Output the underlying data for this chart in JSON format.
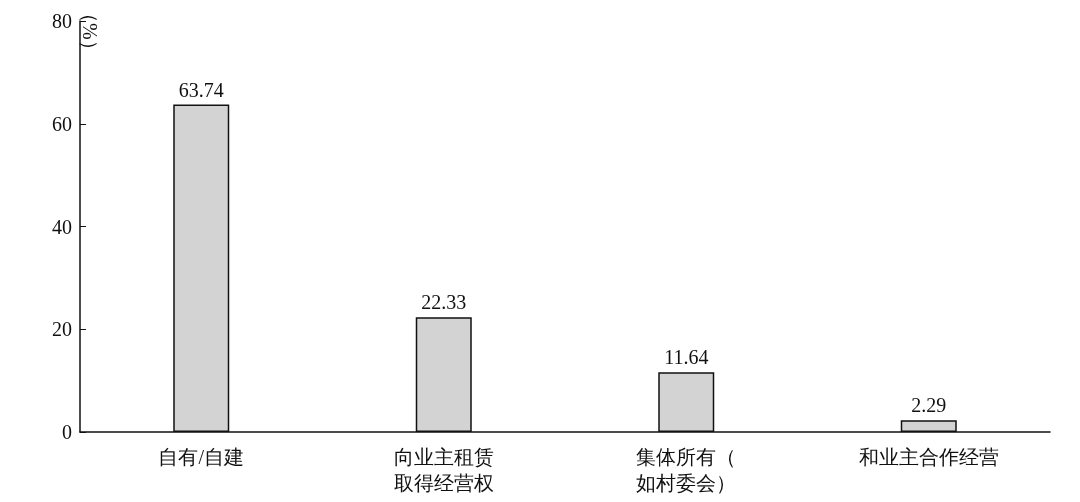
{
  "chart_data": {
    "type": "bar",
    "ylabel": "（%）",
    "categories": [
      "自有/自建",
      "向业主租赁取得经营权",
      "集体所有（如村委会）",
      "和业主合作经营"
    ],
    "values": [
      63.74,
      22.33,
      11.64,
      2.29
    ],
    "color": "#d3d3d3",
    "ylim": [
      0,
      80
    ],
    "yticks": [
      0,
      20,
      40,
      60,
      80
    ],
    "data_labels": true,
    "grid": false
  }
}
